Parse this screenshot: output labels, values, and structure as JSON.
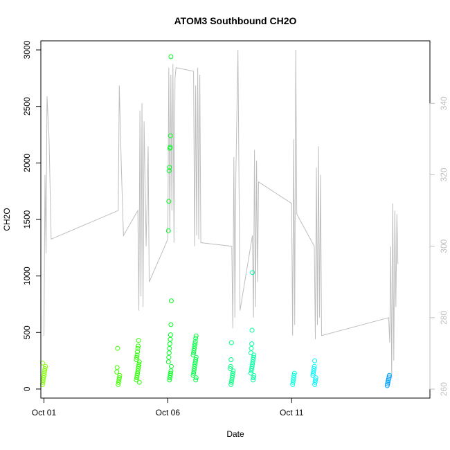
{
  "chart_data": {
    "type": "scatter",
    "title": "ATOM3 Southbound CH2O",
    "xlabel": "Date",
    "ylabel": "CH2O",
    "xlim": [
      "2017-09-30T21:00",
      "2017-10-16T14:00"
    ],
    "ylim": [
      -80,
      3080
    ],
    "y2lim": [
      257.5,
      357.5
    ],
    "x_ticks": [
      {
        "label": "Oct 01",
        "date": "2017-10-01"
      },
      {
        "label": "Oct 06",
        "date": "2017-10-06"
      },
      {
        "label": "Oct 11",
        "date": "2017-10-11"
      }
    ],
    "y_ticks": [
      0,
      500,
      1000,
      1500,
      2000,
      2500,
      3000
    ],
    "y2_ticks": [
      260,
      280,
      300,
      320,
      340
    ],
    "secondary_series_color": "#bebebe",
    "point_series": [
      {
        "date": "2017-10-01T00:00",
        "color": "#7fff00",
        "values": [
          40,
          60,
          80,
          100,
          120,
          140,
          160,
          180,
          200,
          230
        ]
      },
      {
        "date": "2017-10-04T00:00",
        "color": "#3fff00",
        "values": [
          40,
          60,
          80,
          100,
          120,
          150,
          190,
          360
        ]
      },
      {
        "date": "2017-10-04T19:00",
        "color": "#2aff00",
        "values": [
          60,
          80,
          100,
          120,
          140,
          160,
          180,
          200,
          220,
          240,
          260,
          280,
          300,
          330,
          360,
          380,
          430
        ]
      },
      {
        "date": "2017-10-06T02:00",
        "color": "#00ff20",
        "values": [
          80,
          100,
          120,
          140,
          160,
          200,
          240,
          280,
          320,
          360,
          400,
          440,
          480,
          570,
          780,
          1400,
          1660,
          1930,
          1960,
          2130,
          2140,
          2240,
          2940
        ]
      },
      {
        "date": "2017-10-07T02:00",
        "color": "#00ff40",
        "values": [
          80,
          100,
          120,
          140,
          160,
          180,
          200,
          220,
          240,
          260,
          280,
          300,
          320,
          340,
          360,
          380,
          400,
          420,
          450,
          470
        ]
      },
      {
        "date": "2017-10-08T14:00",
        "color": "#00ff80",
        "values": [
          40,
          60,
          80,
          100,
          120,
          140,
          160,
          180,
          200,
          260,
          410
        ]
      },
      {
        "date": "2017-10-09T10:00",
        "color": "#00ff9f",
        "values": [
          80,
          100,
          120,
          140,
          160,
          180,
          200,
          220,
          240,
          260,
          280,
          300,
          320,
          360,
          400,
          520,
          1030
        ]
      },
      {
        "date": "2017-10-11T02:00",
        "color": "#00ffdf",
        "values": [
          40,
          60,
          80,
          100,
          120,
          140
        ]
      },
      {
        "date": "2017-10-11T22:00",
        "color": "#00f5ff",
        "values": [
          40,
          60,
          80,
          100,
          120,
          140,
          160,
          180,
          200,
          250
        ]
      },
      {
        "date": "2017-10-14T22:00",
        "color": "#00a0ff",
        "values": [
          30,
          45,
          60,
          75,
          90,
          105,
          120
        ]
      }
    ],
    "line_series": {
      "name": "",
      "axis": "right",
      "points": [
        [
          "2017-10-01T00:00",
          275
        ],
        [
          "2017-10-01T01:00",
          320
        ],
        [
          "2017-10-01T02:00",
          298
        ],
        [
          "2017-10-01T03:00",
          342
        ],
        [
          "2017-10-01T05:00",
          330
        ],
        [
          "2017-10-01T07:00",
          302
        ],
        [
          "2017-10-04T00:00",
          310
        ],
        [
          "2017-10-04T01:00",
          345
        ],
        [
          "2017-10-04T03:00",
          322
        ],
        [
          "2017-10-04T05:00",
          303
        ],
        [
          "2017-10-04T19:00",
          310
        ],
        [
          "2017-10-04T20:00",
          282
        ],
        [
          "2017-10-04T21:00",
          338
        ],
        [
          "2017-10-04T22:00",
          286
        ],
        [
          "2017-10-04T23:00",
          340
        ],
        [
          "2017-10-05T00:00",
          283
        ],
        [
          "2017-10-05T01:00",
          335
        ],
        [
          "2017-10-05T03:00",
          300
        ],
        [
          "2017-10-05T05:00",
          328
        ],
        [
          "2017-10-05T06:00",
          290
        ],
        [
          "2017-10-06T00:00",
          302
        ],
        [
          "2017-10-06T01:00",
          350
        ],
        [
          "2017-10-06T02:00",
          304
        ],
        [
          "2017-10-06T03:00",
          348
        ],
        [
          "2017-10-06T04:00",
          310
        ],
        [
          "2017-10-06T05:00",
          351
        ],
        [
          "2017-10-06T06:00",
          301
        ],
        [
          "2017-10-06T07:00",
          347
        ],
        [
          "2017-10-06T08:00",
          350
        ],
        [
          "2017-10-07T01:00",
          349
        ],
        [
          "2017-10-07T02:00",
          300
        ],
        [
          "2017-10-07T03:00",
          345
        ],
        [
          "2017-10-07T04:00",
          303
        ],
        [
          "2017-10-07T05:00",
          350
        ],
        [
          "2017-10-07T06:00",
          302
        ],
        [
          "2017-10-07T07:00",
          348
        ],
        [
          "2017-10-07T08:00",
          301
        ],
        [
          "2017-10-08T14:00",
          300
        ],
        [
          "2017-10-08T15:00",
          277
        ],
        [
          "2017-10-08T16:00",
          325
        ],
        [
          "2017-10-08T17:00",
          280
        ],
        [
          "2017-10-08T18:00",
          320
        ],
        [
          "2017-10-08T20:00",
          355
        ],
        [
          "2017-10-08T22:00",
          282
        ],
        [
          "2017-10-09T10:00",
          303
        ],
        [
          "2017-10-09T11:00",
          280
        ],
        [
          "2017-10-09T12:00",
          327
        ],
        [
          "2017-10-09T13:00",
          283
        ],
        [
          "2017-10-09T14:00",
          324
        ],
        [
          "2017-10-09T15:00",
          290
        ],
        [
          "2017-10-09T16:00",
          318
        ],
        [
          "2017-10-11T00:00",
          312
        ],
        [
          "2017-10-11T01:00",
          275
        ],
        [
          "2017-10-11T02:00",
          330
        ],
        [
          "2017-10-11T03:00",
          278
        ],
        [
          "2017-10-11T04:00",
          355
        ],
        [
          "2017-10-11T05:00",
          309
        ],
        [
          "2017-10-11T22:00",
          300
        ],
        [
          "2017-10-11T23:00",
          274
        ],
        [
          "2017-10-12T00:00",
          322
        ],
        [
          "2017-10-12T01:00",
          278
        ],
        [
          "2017-10-12T02:00",
          328
        ],
        [
          "2017-10-12T03:00",
          280
        ],
        [
          "2017-10-12T04:00",
          320
        ],
        [
          "2017-10-12T05:00",
          275
        ],
        [
          "2017-10-14T22:00",
          280
        ],
        [
          "2017-10-14T23:00",
          273
        ],
        [
          "2017-10-15T00:00",
          300
        ],
        [
          "2017-10-15T01:00",
          263
        ],
        [
          "2017-10-15T02:00",
          312
        ],
        [
          "2017-10-15T03:00",
          268
        ],
        [
          "2017-10-15T04:00",
          310
        ],
        [
          "2017-10-15T05:00",
          283
        ],
        [
          "2017-10-15T06:00",
          309
        ],
        [
          "2017-10-15T07:00",
          295
        ]
      ]
    }
  }
}
